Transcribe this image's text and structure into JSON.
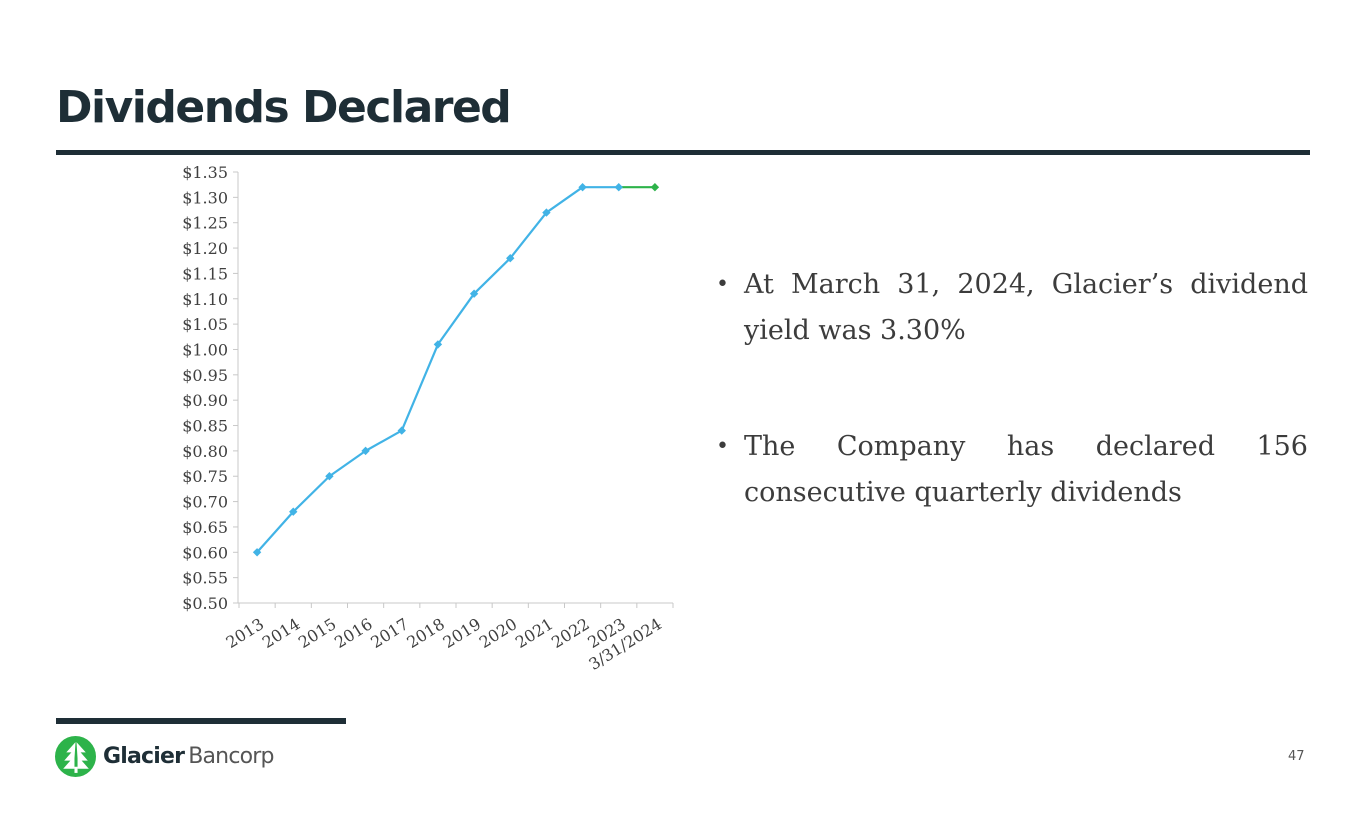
{
  "title": "Dividends Declared",
  "bullets": [
    "At March 31, 2024, Glacier’s dividend yield was 3.30%",
    "The Company has declared 156 consecutive quarterly dividends"
  ],
  "footer": {
    "brand_bold": "Glacier",
    "brand_light": "Bancorp",
    "page_number": "47"
  },
  "colors": {
    "title": "#1e2e36",
    "line_primary": "#41b3e6",
    "line_latest": "#2db34a",
    "logo_green": "#2db34a"
  },
  "chart_data": {
    "type": "line",
    "categories": [
      "2013",
      "2014",
      "2015",
      "2016",
      "2017",
      "2018",
      "2019",
      "2020",
      "2021",
      "2022",
      "2023",
      "3/31/2024"
    ],
    "series": [
      {
        "values": [
          0.6,
          0.68,
          0.75,
          0.8,
          0.84,
          1.01,
          1.11,
          1.18,
          1.27,
          1.32,
          1.32,
          1.32
        ]
      }
    ],
    "highlight": {
      "from_category": "2023",
      "to_category": "3/31/2024",
      "color": "#2db34a"
    },
    "ylim": [
      0.5,
      1.35
    ],
    "y_step": 0.05,
    "y_tick_labels": [
      "$0.50",
      "$0.55",
      "$0.60",
      "$0.65",
      "$0.70",
      "$0.75",
      "$0.80",
      "$0.85",
      "$0.90",
      "$0.95",
      "$1.00",
      "$1.05",
      "$1.10",
      "$1.15",
      "$1.20",
      "$1.25",
      "$1.30",
      "$1.35"
    ],
    "marker": "diamond",
    "grid": false,
    "legend": "none"
  }
}
